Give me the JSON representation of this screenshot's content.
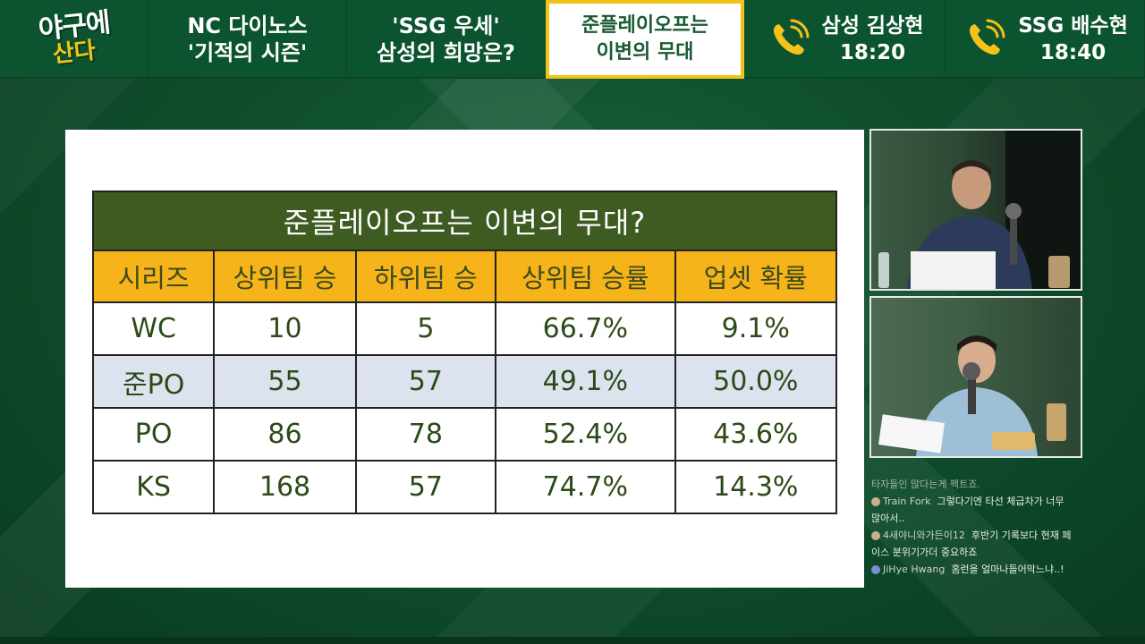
{
  "logo": {
    "line1": "야구에",
    "line2": "산다"
  },
  "tabs": [
    {
      "line1": "NC 다이노스",
      "line2": "'기적의 시즌'"
    },
    {
      "line1": "'SSG 우세'",
      "line2": "삼성의 희망은?"
    },
    {
      "line1": "준플레이오프는",
      "line2": "이변의 무대"
    }
  ],
  "calls": [
    {
      "icon": "phone-icon",
      "name": "삼성 김상현",
      "time": "18:20"
    },
    {
      "icon": "phone-icon",
      "name": "SSG 배수현",
      "time": "18:40"
    }
  ],
  "colors": {
    "accent": "#f1c31a",
    "header_green": "#3e5b22",
    "header_orange": "#f6b31a"
  },
  "slide": {
    "title": "준플레이오프는 이변의 무대?",
    "columns": [
      "시리즈",
      "상위팀 승",
      "하위팀 승",
      "상위팀 승률",
      "업셋 확률"
    ],
    "rows": [
      [
        "WC",
        "10",
        "5",
        "66.7%",
        "9.1%"
      ],
      [
        "준PO",
        "55",
        "57",
        "49.1%",
        "50.0%"
      ],
      [
        "PO",
        "86",
        "78",
        "52.4%",
        "43.6%"
      ],
      [
        "KS",
        "168",
        "57",
        "74.7%",
        "14.3%"
      ]
    ]
  },
  "chat": {
    "first_line": "타자들인 많다는게 팩트죠.",
    "messages": [
      {
        "user": "Train Fork",
        "text": "그렇다기엔 타선 체급차가 너무",
        "cont": "많아서.."
      },
      {
        "user": "4새야니와가든이12",
        "text": "후반기 기록보다 현재 페",
        "cont": "이스 분위기가더 중요하죠"
      },
      {
        "user": "JiHye Hwang",
        "text": "홈런을 얼마나들어막느냐..!",
        "cont": ""
      }
    ]
  }
}
